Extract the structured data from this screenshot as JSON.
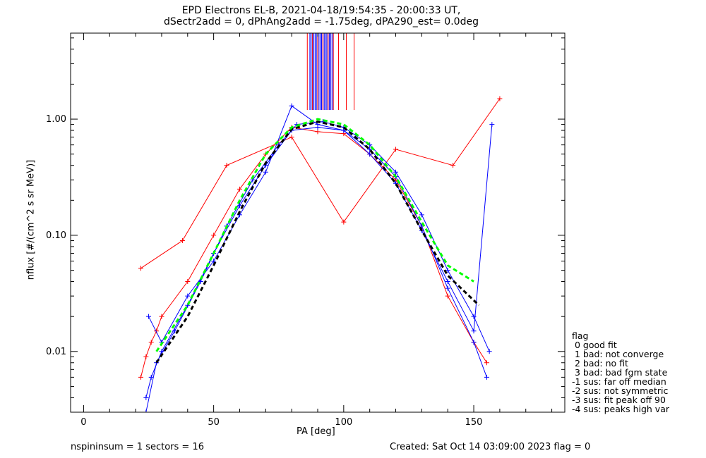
{
  "chart_data": {
    "type": "line",
    "title_line1": "EPD Electrons EL-B, 2021-04-18/19:54:35 - 20:00:33 UT,",
    "title_line2": "dSectr2add = 0, dPhAng2add = -1.75deg, dPA290_est=   0.0deg",
    "xlabel": "PA [deg]",
    "ylabel": "nflux [#/(cm^2 s sr MeV)]",
    "xlim": [
      -5,
      185
    ],
    "ylim": [
      0.003,
      5.5
    ],
    "yscale": "log",
    "x_ticks": [
      0,
      50,
      100,
      150
    ],
    "x_tick_labels": [
      "0",
      "50",
      "100",
      "150"
    ],
    "y_ticks": [
      0.01,
      0.1,
      1.0
    ],
    "y_tick_labels": [
      "0.01",
      "0.10",
      "1.00"
    ],
    "grid": false,
    "legend_placement": "lower-right outside",
    "series": [
      {
        "color": "#ff0000",
        "marker": "+",
        "x": [
          22,
          24,
          26,
          28,
          30,
          40,
          50,
          60,
          70,
          80,
          90,
          100,
          110,
          120,
          130,
          140,
          150,
          155
        ],
        "y": [
          0.006,
          0.009,
          0.012,
          0.015,
          0.02,
          0.04,
          0.1,
          0.25,
          0.5,
          0.85,
          0.78,
          0.75,
          0.5,
          0.3,
          0.12,
          0.03,
          0.012,
          0.008
        ]
      },
      {
        "color": "#ff0000",
        "marker": "+",
        "x": [
          22,
          38,
          55,
          80,
          100,
          120,
          142,
          160
        ],
        "y": [
          0.052,
          0.09,
          0.4,
          0.7,
          0.13,
          0.55,
          0.4,
          1.5
        ]
      },
      {
        "color": "#0000ff",
        "marker": "+",
        "x": [
          24,
          26,
          30,
          40,
          50,
          60,
          70,
          80,
          90,
          100,
          110,
          120,
          130,
          140,
          150,
          155
        ],
        "y": [
          0.004,
          0.006,
          0.01,
          0.025,
          0.07,
          0.18,
          0.4,
          0.8,
          0.85,
          0.8,
          0.55,
          0.32,
          0.12,
          0.035,
          0.012,
          0.006
        ]
      },
      {
        "color": "#0000ff",
        "marker": "+",
        "x": [
          25,
          30,
          40,
          50,
          60,
          70,
          80,
          90,
          100,
          110,
          120,
          130,
          140,
          150,
          157
        ],
        "y": [
          0.02,
          0.012,
          0.03,
          0.06,
          0.15,
          0.35,
          1.3,
          0.9,
          0.8,
          0.5,
          0.28,
          0.11,
          0.04,
          0.015,
          0.9
        ]
      },
      {
        "color": "#0000ff",
        "marker": "+",
        "x": [
          24,
          28,
          35,
          45,
          55,
          65,
          75,
          82,
          92,
          100,
          110,
          120,
          130,
          140,
          150,
          156
        ],
        "y": [
          0.003,
          0.008,
          0.015,
          0.04,
          0.12,
          0.3,
          0.6,
          0.9,
          0.95,
          0.85,
          0.6,
          0.35,
          0.15,
          0.05,
          0.02,
          0.01
        ]
      },
      {
        "color": "#000000",
        "dash": "dashed",
        "marker": "",
        "x": [
          28,
          40,
          50,
          60,
          70,
          80,
          90,
          100,
          110,
          120,
          130,
          140,
          152
        ],
        "y": [
          0.008,
          0.02,
          0.055,
          0.16,
          0.42,
          0.82,
          0.95,
          0.85,
          0.55,
          0.28,
          0.11,
          0.045,
          0.025
        ]
      },
      {
        "color": "#00ff00",
        "dash": "dashed",
        "marker": "",
        "x": [
          28,
          40,
          50,
          60,
          70,
          80,
          90,
          100,
          110,
          120,
          130,
          140,
          150
        ],
        "y": [
          0.01,
          0.025,
          0.07,
          0.2,
          0.5,
          0.85,
          1.0,
          0.9,
          0.6,
          0.32,
          0.13,
          0.055,
          0.04
        ]
      }
    ],
    "spikes": {
      "red_x": [
        86,
        88,
        90,
        92,
        94,
        96,
        98,
        101,
        104
      ],
      "blue_x_range": [
        87,
        96
      ],
      "y_top": 5.5,
      "y_bottom": 1.2
    }
  },
  "legend": {
    "title": "flag",
    "items": [
      " 0 good fit",
      " 1 bad: not converge",
      " 2 bad: no fit",
      " 3 bad: bad fgm state",
      "-1 sus: far off median",
      "-2 sus: not symmetric",
      "-3 sus: fit peak off 90",
      "-4 sus: peaks high var"
    ]
  },
  "footer": {
    "left": "nspininsum =  1  sectors = 16",
    "right": "Created: Sat Oct 14 03:09:00 2023   flag = 0"
  }
}
